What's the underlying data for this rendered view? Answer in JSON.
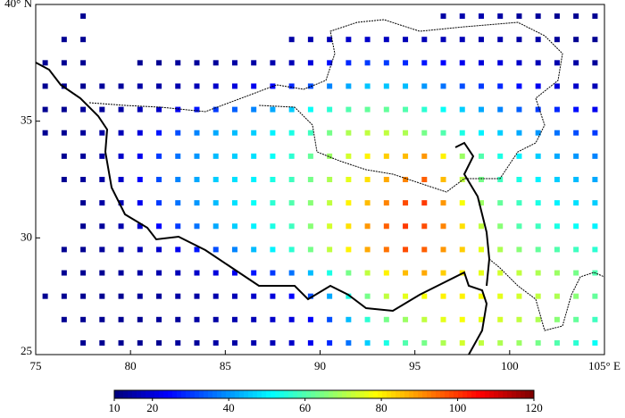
{
  "chart_data": {
    "type": "gridmap",
    "colormap": "jet",
    "x": [
      75.5,
      76.5,
      77.5,
      78.5,
      79.5,
      80.5,
      81.5,
      82.5,
      83.5,
      84.5,
      85.5,
      86.5,
      87.5,
      88.5,
      89.5,
      90.5,
      91.5,
      92.5,
      93.5,
      94.5,
      95.5,
      96.5,
      97.5,
      98.5,
      99.5,
      100.5,
      101.5,
      102.5,
      103.5,
      104.5
    ],
    "y": [
      39.5,
      38.5,
      37.5,
      36.5,
      35.5,
      34.5,
      33.5,
      32.5,
      31.5,
      30.5,
      29.5,
      28.5,
      27.5,
      26.5,
      25.5
    ],
    "values": [
      [
        null,
        null,
        12,
        null,
        null,
        null,
        null,
        null,
        null,
        null,
        null,
        null,
        null,
        null,
        null,
        null,
        null,
        null,
        null,
        null,
        null,
        14,
        15,
        15,
        14,
        13,
        13,
        12,
        12,
        12
      ],
      [
        null,
        12,
        12,
        null,
        null,
        null,
        null,
        null,
        null,
        null,
        null,
        null,
        null,
        14,
        15,
        16,
        18,
        18,
        17,
        16,
        16,
        16,
        16,
        15,
        15,
        14,
        14,
        13,
        12,
        12
      ],
      [
        12,
        12,
        12,
        null,
        null,
        12,
        12,
        13,
        13,
        13,
        14,
        14,
        15,
        16,
        20,
        25,
        28,
        30,
        30,
        28,
        26,
        24,
        22,
        20,
        20,
        18,
        16,
        15,
        14,
        13
      ],
      [
        12,
        12,
        12,
        13,
        13,
        14,
        14,
        15,
        16,
        18,
        20,
        22,
        24,
        28,
        32,
        38,
        42,
        45,
        45,
        44,
        40,
        36,
        32,
        30,
        28,
        25,
        22,
        20,
        18,
        16
      ],
      [
        12,
        12,
        13,
        13,
        14,
        16,
        18,
        22,
        26,
        30,
        34,
        38,
        42,
        46,
        52,
        56,
        60,
        62,
        62,
        60,
        56,
        52,
        46,
        42,
        38,
        34,
        30,
        28,
        25,
        22
      ],
      [
        12,
        12,
        13,
        14,
        16,
        20,
        26,
        32,
        38,
        42,
        44,
        46,
        50,
        54,
        58,
        64,
        70,
        72,
        72,
        70,
        64,
        60,
        54,
        50,
        46,
        42,
        40,
        36,
        32,
        30
      ],
      [
        null,
        12,
        13,
        14,
        18,
        22,
        30,
        36,
        40,
        44,
        46,
        48,
        52,
        56,
        62,
        68,
        74,
        80,
        84,
        86,
        90,
        80,
        68,
        60,
        54,
        50,
        46,
        42,
        40,
        38
      ],
      [
        null,
        12,
        13,
        14,
        18,
        24,
        32,
        38,
        42,
        46,
        48,
        50,
        54,
        58,
        64,
        70,
        76,
        82,
        88,
        92,
        96,
        86,
        72,
        64,
        58,
        54,
        50,
        46,
        44,
        42
      ],
      [
        null,
        null,
        12,
        14,
        16,
        22,
        30,
        36,
        40,
        44,
        48,
        52,
        56,
        60,
        66,
        72,
        80,
        86,
        92,
        98,
        100,
        90,
        78,
        68,
        62,
        58,
        54,
        50,
        48,
        46
      ],
      [
        null,
        null,
        12,
        13,
        15,
        18,
        24,
        30,
        36,
        42,
        46,
        50,
        54,
        58,
        66,
        74,
        82,
        90,
        96,
        100,
        98,
        92,
        82,
        72,
        66,
        60,
        58,
        54,
        52,
        50
      ],
      [
        null,
        12,
        12,
        13,
        14,
        16,
        18,
        22,
        26,
        32,
        38,
        44,
        50,
        56,
        64,
        72,
        80,
        88,
        94,
        98,
        96,
        90,
        84,
        76,
        70,
        66,
        62,
        60,
        58,
        56
      ],
      [
        null,
        12,
        12,
        12,
        13,
        14,
        15,
        16,
        18,
        20,
        22,
        26,
        30,
        36,
        44,
        54,
        64,
        72,
        80,
        86,
        88,
        84,
        80,
        76,
        74,
        72,
        70,
        68,
        64,
        60
      ],
      [
        12,
        12,
        12,
        12,
        12,
        13,
        13,
        14,
        14,
        15,
        16,
        18,
        20,
        24,
        32,
        42,
        54,
        64,
        72,
        76,
        78,
        80,
        80,
        78,
        76,
        74,
        72,
        70,
        66,
        62
      ],
      [
        null,
        12,
        12,
        12,
        12,
        12,
        13,
        13,
        14,
        14,
        15,
        16,
        18,
        20,
        24,
        32,
        44,
        56,
        64,
        68,
        72,
        76,
        78,
        76,
        74,
        72,
        70,
        66,
        62,
        58
      ],
      [
        null,
        null,
        12,
        12,
        12,
        12,
        12,
        13,
        13,
        14,
        14,
        15,
        16,
        18,
        22,
        28,
        36,
        46,
        54,
        60,
        64,
        70,
        74,
        72,
        70,
        68,
        64,
        60,
        56,
        52
      ]
    ],
    "xlim": [
      75,
      105
    ],
    "ylim": [
      25,
      40
    ],
    "xticks": [
      75,
      80,
      85,
      90,
      95,
      100,
      {
        "value": 105,
        "label": "105° E"
      }
    ],
    "yticks": [
      25,
      30,
      35,
      {
        "value": 40,
        "label": "40° N"
      }
    ],
    "clim": [
      10,
      120
    ],
    "cticks": [
      10,
      20,
      40,
      60,
      80,
      100,
      120
    ]
  }
}
